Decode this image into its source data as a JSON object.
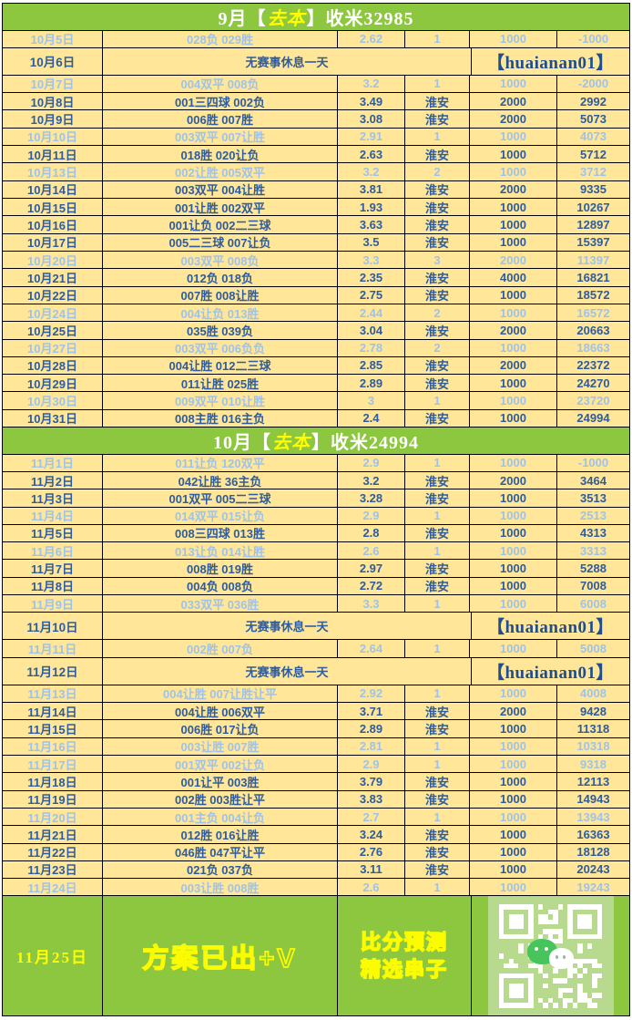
{
  "colors": {
    "header_green": "#8dc63f",
    "row_yellow": "#ffe699",
    "dark_text": "#2e5c9c",
    "light_text": "#9fc3e8",
    "highlight_yellow": "#ffff00",
    "tag_navy": "#1f4e8f"
  },
  "rest": {
    "text": "无赛事休息一天",
    "tag": "【huaianan01】"
  },
  "months": [
    {
      "title": {
        "pre": "9月【",
        "hl": "去本",
        "post": "】收米32985"
      },
      "rows": [
        {
          "kind": "bet",
          "style": "light",
          "date": "10月5日",
          "pick": "028负 029胜",
          "odds": "2.62",
          "venue": "1",
          "stake": "1000",
          "profit": "-1000"
        },
        {
          "kind": "rest",
          "date": "10月6日"
        },
        {
          "kind": "bet",
          "style": "light",
          "date": "10月7日",
          "pick": "004双平 008负",
          "odds": "3.2",
          "venue": "1",
          "stake": "1000",
          "profit": "-2000"
        },
        {
          "kind": "bet",
          "style": "dark",
          "date": "10月8日",
          "pick": "001三四球 002负",
          "odds": "3.49",
          "venue": "淮安",
          "stake": "2000",
          "profit": "2992"
        },
        {
          "kind": "bet",
          "style": "dark",
          "date": "10月9日",
          "pick": "006胜 007胜",
          "odds": "3.08",
          "venue": "淮安",
          "stake": "2000",
          "profit": "5073"
        },
        {
          "kind": "bet",
          "style": "light",
          "date": "10月10日",
          "pick": "003双平 007让胜",
          "odds": "2.91",
          "venue": "1",
          "stake": "1000",
          "profit": "4073"
        },
        {
          "kind": "bet",
          "style": "dark",
          "date": "10月11日",
          "pick": "018胜 020让负",
          "odds": "2.63",
          "venue": "淮安",
          "stake": "1000",
          "profit": "5712"
        },
        {
          "kind": "bet",
          "style": "light",
          "date": "10月13日",
          "pick": "002让胜 005双平",
          "odds": "3.2",
          "venue": "2",
          "stake": "1000",
          "profit": "3712"
        },
        {
          "kind": "bet",
          "style": "dark",
          "date": "10月14日",
          "pick": "003双平 004让胜",
          "odds": "3.81",
          "venue": "淮安",
          "stake": "2000",
          "profit": "9335"
        },
        {
          "kind": "bet",
          "style": "dark",
          "date": "10月15日",
          "pick": "001让胜 002双平",
          "odds": "1.93",
          "venue": "淮安",
          "stake": "1000",
          "profit": "10267"
        },
        {
          "kind": "bet",
          "style": "dark",
          "date": "10月16日",
          "pick": "001让负 002二三球",
          "odds": "3.63",
          "venue": "淮安",
          "stake": "1000",
          "profit": "12897"
        },
        {
          "kind": "bet",
          "style": "dark",
          "date": "10月17日",
          "pick": "005二三球 007让负",
          "odds": "3.5",
          "venue": "淮安",
          "stake": "1000",
          "profit": "15397"
        },
        {
          "kind": "bet",
          "style": "light",
          "date": "10月20日",
          "pick": "003双平 008负",
          "odds": "3.3",
          "venue": "3",
          "stake": "2000",
          "profit": "11397"
        },
        {
          "kind": "bet",
          "style": "dark",
          "date": "10月21日",
          "pick": "012负 018负",
          "odds": "2.35",
          "venue": "淮安",
          "stake": "4000",
          "profit": "16821"
        },
        {
          "kind": "bet",
          "style": "dark",
          "date": "10月22日",
          "pick": "007胜 008让胜",
          "odds": "2.75",
          "venue": "淮安",
          "stake": "1000",
          "profit": "18572"
        },
        {
          "kind": "bet",
          "style": "light",
          "date": "10月24日",
          "pick": "004让负 013胜",
          "odds": "2.44",
          "venue": "2",
          "stake": "1000",
          "profit": "16572"
        },
        {
          "kind": "bet",
          "style": "dark",
          "date": "10月25日",
          "pick": "035胜 039负",
          "odds": "3.04",
          "venue": "淮安",
          "stake": "2000",
          "profit": "20663"
        },
        {
          "kind": "bet",
          "style": "light",
          "date": "10月27日",
          "pick": "003双平 006负负",
          "odds": "2.78",
          "venue": "2",
          "stake": "1000",
          "profit": "18663"
        },
        {
          "kind": "bet",
          "style": "dark",
          "date": "10月28日",
          "pick": "004让胜 012二三球",
          "odds": "2.85",
          "venue": "淮安",
          "stake": "2000",
          "profit": "22372"
        },
        {
          "kind": "bet",
          "style": "dark",
          "date": "10月29日",
          "pick": "011让胜 025胜",
          "odds": "2.89",
          "venue": "淮安",
          "stake": "1000",
          "profit": "24270"
        },
        {
          "kind": "bet",
          "style": "light",
          "date": "10月30日",
          "pick": "009双平 010让胜",
          "odds": "3",
          "venue": "1",
          "stake": "1000",
          "profit": "23720"
        },
        {
          "kind": "bet",
          "style": "dark",
          "date": "10月31日",
          "pick": "008主胜 016主负",
          "odds": "2.4",
          "venue": "淮安",
          "stake": "1000",
          "profit": "24994"
        }
      ]
    },
    {
      "title": {
        "pre": "10月【",
        "hl": "去本",
        "post": "】收米24994"
      },
      "rows": [
        {
          "kind": "bet",
          "style": "light",
          "date": "11月1日",
          "pick": "011让负 120双平",
          "odds": "2.9",
          "venue": "1",
          "stake": "1000",
          "profit": "-1000"
        },
        {
          "kind": "bet",
          "style": "dark",
          "date": "11月2日",
          "pick": "042让胜 36主负",
          "odds": "3.2",
          "venue": "淮安",
          "stake": "2000",
          "profit": "3464"
        },
        {
          "kind": "bet",
          "style": "dark",
          "date": "11月3日",
          "pick": "001双平 005二三球",
          "odds": "3.28",
          "venue": "淮安",
          "stake": "1000",
          "profit": "3513"
        },
        {
          "kind": "bet",
          "style": "light",
          "date": "11月4日",
          "pick": "014双平 015让负",
          "odds": "2.9",
          "venue": "1",
          "stake": "1000",
          "profit": "2513"
        },
        {
          "kind": "bet",
          "style": "dark",
          "date": "11月5日",
          "pick": "008三四球 013胜",
          "odds": "2.8",
          "venue": "淮安",
          "stake": "1000",
          "profit": "4313"
        },
        {
          "kind": "bet",
          "style": "light",
          "date": "11月6日",
          "pick": "013让负 014让胜",
          "odds": "2.6",
          "venue": "1",
          "stake": "1000",
          "profit": "3313"
        },
        {
          "kind": "bet",
          "style": "dark",
          "date": "11月7日",
          "pick": "008胜 019胜",
          "odds": "2.97",
          "venue": "淮安",
          "stake": "1000",
          "profit": "5288"
        },
        {
          "kind": "bet",
          "style": "dark",
          "date": "11月8日",
          "pick": "004负 008负",
          "odds": "2.72",
          "venue": "淮安",
          "stake": "1000",
          "profit": "7008"
        },
        {
          "kind": "bet",
          "style": "light",
          "date": "11月9日",
          "pick": "033双平 036胜",
          "odds": "3.3",
          "venue": "1",
          "stake": "1000",
          "profit": "6008"
        },
        {
          "kind": "rest",
          "date": "11月10日"
        },
        {
          "kind": "bet",
          "style": "light",
          "date": "11月11日",
          "pick": "002胜 007负",
          "odds": "2.64",
          "venue": "1",
          "stake": "1000",
          "profit": "5008"
        },
        {
          "kind": "rest",
          "date": "11月12日"
        },
        {
          "kind": "bet",
          "style": "light",
          "date": "11月13日",
          "pick": "004让胜 007让胜让平",
          "odds": "2.92",
          "venue": "1",
          "stake": "1000",
          "profit": "4008"
        },
        {
          "kind": "bet",
          "style": "dark",
          "date": "11月14日",
          "pick": "004让胜 006双平",
          "odds": "3.71",
          "venue": "淮安",
          "stake": "2000",
          "profit": "9428"
        },
        {
          "kind": "bet",
          "style": "dark",
          "date": "11月15日",
          "pick": "006胜 017让负",
          "odds": "2.89",
          "venue": "淮安",
          "stake": "1000",
          "profit": "11318"
        },
        {
          "kind": "bet",
          "style": "light",
          "date": "11月16日",
          "pick": "003让胜 007胜",
          "odds": "2.81",
          "venue": "1",
          "stake": "1000",
          "profit": "10318"
        },
        {
          "kind": "bet",
          "style": "light",
          "date": "11月17日",
          "pick": "001双平 002让负",
          "odds": "2.9",
          "venue": "1",
          "stake": "1000",
          "profit": "9318"
        },
        {
          "kind": "bet",
          "style": "dark",
          "date": "11月18日",
          "pick": "001让平 003胜",
          "odds": "3.79",
          "venue": "淮安",
          "stake": "1000",
          "profit": "12113"
        },
        {
          "kind": "bet",
          "style": "dark",
          "date": "11月19日",
          "pick": "002胜 003胜让平",
          "odds": "3.83",
          "venue": "淮安",
          "stake": "1000",
          "profit": "14943"
        },
        {
          "kind": "bet",
          "style": "light",
          "date": "11月20日",
          "pick": "001主负 004让负",
          "odds": "2.7",
          "venue": "1",
          "stake": "1000",
          "profit": "13943"
        },
        {
          "kind": "bet",
          "style": "dark",
          "date": "11月21日",
          "pick": "012胜 016让胜",
          "odds": "3.24",
          "venue": "淮安",
          "stake": "1000",
          "profit": "16363"
        },
        {
          "kind": "bet",
          "style": "dark",
          "date": "11月22日",
          "pick": "046胜 047平让平",
          "odds": "2.76",
          "venue": "淮安",
          "stake": "1000",
          "profit": "18128"
        },
        {
          "kind": "bet",
          "style": "dark",
          "date": "11月23日",
          "pick": "021负 037负",
          "odds": "3.11",
          "venue": "淮安",
          "stake": "1000",
          "profit": "20243"
        },
        {
          "kind": "bet",
          "style": "light",
          "date": "11月24日",
          "pick": "003让胜 008胜",
          "odds": "2.6",
          "venue": "1",
          "stake": "1000",
          "profit": "19243"
        }
      ]
    }
  ],
  "bottom": {
    "date": "11月25日",
    "promo": "方案已出+V",
    "line1": "比分预测",
    "line2": "精选串子",
    "qr": "wechat-qr-code"
  }
}
